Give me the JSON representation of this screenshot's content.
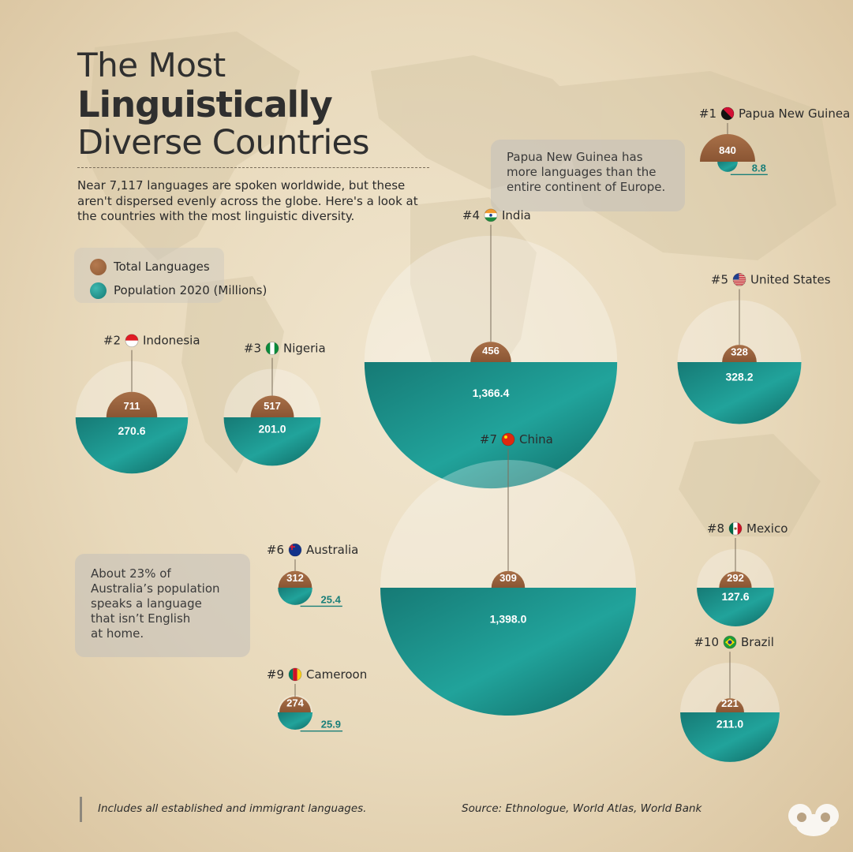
{
  "title": {
    "line1": "The Most",
    "line2": "Linguistically",
    "line3": "Diverse Countries"
  },
  "intro": "Near 7,117 languages are spoken worldwide, but these aren't dispersed evenly across the globe. Here's a look at the countries with the most linguistic diversity.",
  "legend": {
    "languages": "Total Languages",
    "population": "Population 2020 (Millions)"
  },
  "notes": {
    "png": [
      "Papua New Guinea has",
      "more languages than the",
      "entire continent of Europe."
    ],
    "australia": [
      "About 23% of",
      "Australia’s population",
      "speaks a language",
      "that isn’t English",
      "at home."
    ]
  },
  "footnote": "Includes all established and immigrant languages.",
  "source": "Source: Ethnologue, World Atlas, World Bank",
  "colors": {
    "languages": "#9a6440",
    "population": "#1f9890",
    "population_label": "#1a7f79",
    "text": "#2b2b2b"
  },
  "chart_data": {
    "type": "bubble",
    "series": [
      {
        "name": "Total Languages"
      },
      {
        "name": "Population 2020 (Millions)"
      }
    ],
    "countries": [
      {
        "rank": "#1",
        "name": "Papua New Guinea",
        "languages": 840,
        "languages_label": "840",
        "population": 8.8,
        "population_label": "8.8"
      },
      {
        "rank": "#2",
        "name": "Indonesia",
        "languages": 711,
        "languages_label": "711",
        "population": 270.6,
        "population_label": "270.6"
      },
      {
        "rank": "#3",
        "name": "Nigeria",
        "languages": 517,
        "languages_label": "517",
        "population": 201.0,
        "population_label": "201.0"
      },
      {
        "rank": "#4",
        "name": "India",
        "languages": 456,
        "languages_label": "456",
        "population": 1366.4,
        "population_label": "1,366.4"
      },
      {
        "rank": "#5",
        "name": "United States",
        "languages": 328,
        "languages_label": "328",
        "population": 328.2,
        "population_label": "328.2"
      },
      {
        "rank": "#6",
        "name": "Australia",
        "languages": 312,
        "languages_label": "312",
        "population": 25.4,
        "population_label": "25.4"
      },
      {
        "rank": "#7",
        "name": "China",
        "languages": 309,
        "languages_label": "309",
        "population": 1398.0,
        "population_label": "1,398.0"
      },
      {
        "rank": "#8",
        "name": "Mexico",
        "languages": 292,
        "languages_label": "292",
        "population": 127.6,
        "population_label": "127.6"
      },
      {
        "rank": "#9",
        "name": "Cameroon",
        "languages": 274,
        "languages_label": "274",
        "population": 25.9,
        "population_label": "25.9"
      },
      {
        "rank": "#10",
        "name": "Brazil",
        "languages": 221,
        "languages_label": "221",
        "population": 211.0,
        "population_label": "211.0"
      }
    ]
  }
}
